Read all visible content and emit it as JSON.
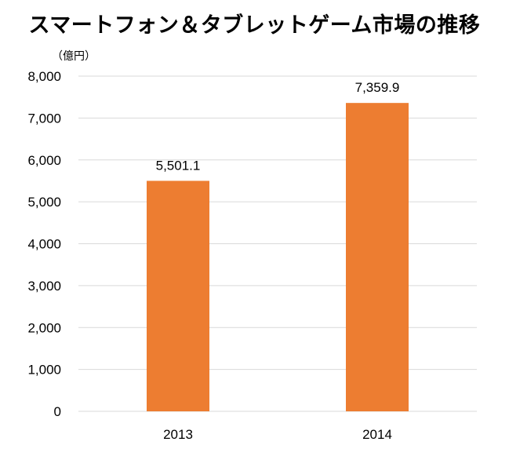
{
  "title": "スマートフォン＆タブレットゲーム市場の推移",
  "unit_label": "（億円）",
  "colors": {
    "bar": "#ED7D31",
    "grid": "#D9D9D9",
    "text": "#000000"
  },
  "chart_data": {
    "type": "bar",
    "title": "スマートフォン＆タブレットゲーム市場の推移",
    "ylabel": "（億円）",
    "xlabel": "",
    "categories": [
      "2013",
      "2014"
    ],
    "series": [
      {
        "values": [
          5501.1,
          7359.9
        ],
        "labels": [
          "5,501.1",
          "7,359.9"
        ]
      }
    ],
    "ylim": [
      0,
      8000
    ],
    "yticks": [
      0,
      1000,
      2000,
      3000,
      4000,
      5000,
      6000,
      7000,
      8000
    ],
    "ytick_labels": [
      "0",
      "1,000",
      "2,000",
      "3,000",
      "4,000",
      "5,000",
      "6,000",
      "7,000",
      "8,000"
    ],
    "grid": true,
    "legend": "none"
  }
}
